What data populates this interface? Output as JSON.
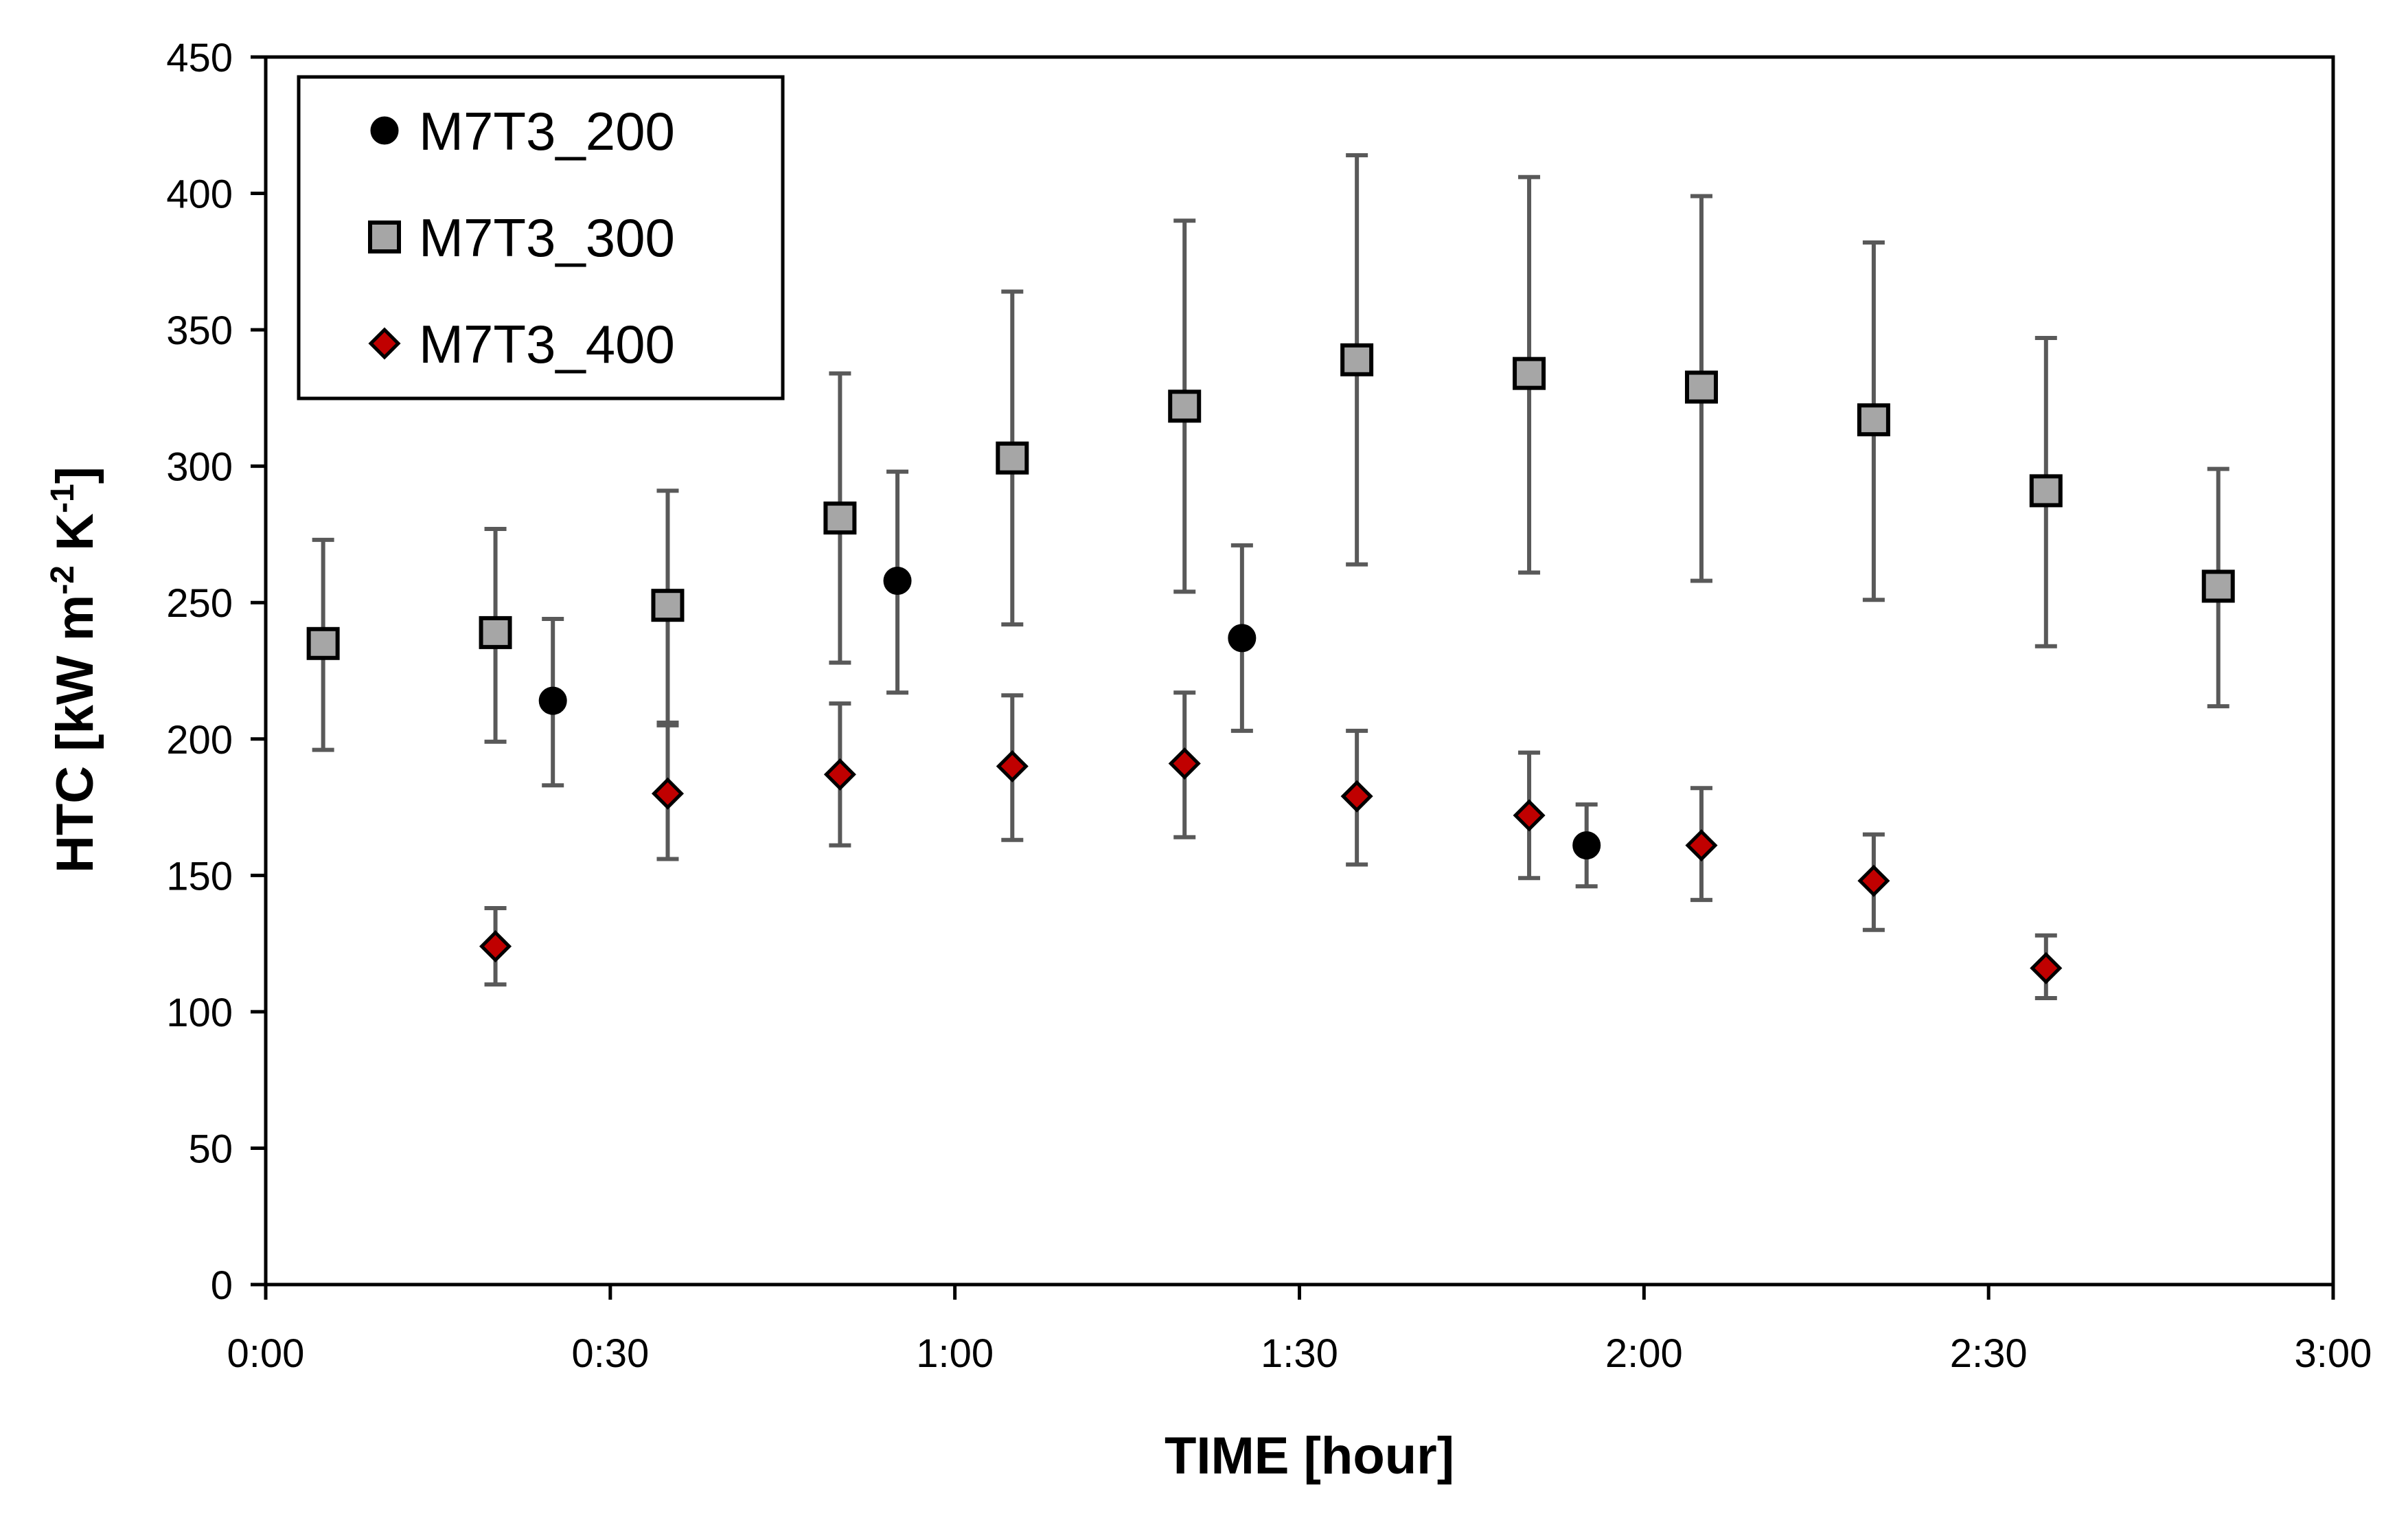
{
  "chart_data": {
    "type": "scatter",
    "title": "",
    "xlabel": "TIME [hour]",
    "ylabel": "HTC [kW m-2 K-1]",
    "ylabel_parts": {
      "main": "HTC [kW m",
      "exp1": "-2",
      "mid": " K",
      "exp2": "-1",
      "end": "]"
    },
    "x_unit": "minutes",
    "xlim": [
      0,
      180
    ],
    "ylim": [
      0,
      450
    ],
    "x_ticks": [
      0,
      30,
      60,
      90,
      120,
      150,
      180
    ],
    "x_tick_labels": [
      "0:00",
      "0:30",
      "1:00",
      "1:30",
      "2:00",
      "2:30",
      "3:00"
    ],
    "y_ticks": [
      0,
      50,
      100,
      150,
      200,
      250,
      300,
      350,
      400,
      450
    ],
    "y_tick_labels": [
      "0",
      "50",
      "100",
      "150",
      "200",
      "250",
      "300",
      "350",
      "400",
      "450"
    ],
    "grid": false,
    "legend_position": "top-left",
    "series": [
      {
        "name": "M7T3_200",
        "marker": "circle",
        "color": "#000000",
        "points": [
          {
            "x": 25,
            "y": 214,
            "low": 183,
            "high": 244
          },
          {
            "x": 55,
            "y": 258,
            "low": 217,
            "high": 298
          },
          {
            "x": 85,
            "y": 237,
            "low": 203,
            "high": 271
          },
          {
            "x": 115,
            "y": 161,
            "low": 146,
            "high": 176
          }
        ]
      },
      {
        "name": "M7T3_300",
        "marker": "square",
        "color": "#a6a6a6",
        "points": [
          {
            "x": 5,
            "y": 235,
            "low": 196,
            "high": 273
          },
          {
            "x": 20,
            "y": 239,
            "low": 199,
            "high": 277
          },
          {
            "x": 35,
            "y": 249,
            "low": 206,
            "high": 291
          },
          {
            "x": 50,
            "y": 281,
            "low": 228,
            "high": 334
          },
          {
            "x": 65,
            "y": 303,
            "low": 242,
            "high": 364
          },
          {
            "x": 80,
            "y": 322,
            "low": 254,
            "high": 390
          },
          {
            "x": 95,
            "y": 339,
            "low": 264,
            "high": 414
          },
          {
            "x": 110,
            "y": 334,
            "low": 261,
            "high": 406
          },
          {
            "x": 125,
            "y": 329,
            "low": 258,
            "high": 399
          },
          {
            "x": 140,
            "y": 317,
            "low": 251,
            "high": 382
          },
          {
            "x": 155,
            "y": 291,
            "low": 234,
            "high": 347
          },
          {
            "x": 170,
            "y": 256,
            "low": 212,
            "high": 299
          }
        ]
      },
      {
        "name": "M7T3_400",
        "marker": "diamond",
        "color": "#c00000",
        "points": [
          {
            "x": 20,
            "y": 124,
            "low": 110,
            "high": 138
          },
          {
            "x": 35,
            "y": 180,
            "low": 156,
            "high": 205
          },
          {
            "x": 50,
            "y": 187,
            "low": 161,
            "high": 213
          },
          {
            "x": 65,
            "y": 190,
            "low": 163,
            "high": 216
          },
          {
            "x": 80,
            "y": 191,
            "low": 164,
            "high": 217
          },
          {
            "x": 95,
            "y": 179,
            "low": 154,
            "high": 203
          },
          {
            "x": 110,
            "y": 172,
            "low": 149,
            "high": 195
          },
          {
            "x": 125,
            "y": 161,
            "low": 141,
            "high": 182
          },
          {
            "x": 140,
            "y": 148,
            "low": 130,
            "high": 165
          },
          {
            "x": 155,
            "y": 116,
            "low": 105,
            "high": 128
          }
        ]
      }
    ]
  }
}
